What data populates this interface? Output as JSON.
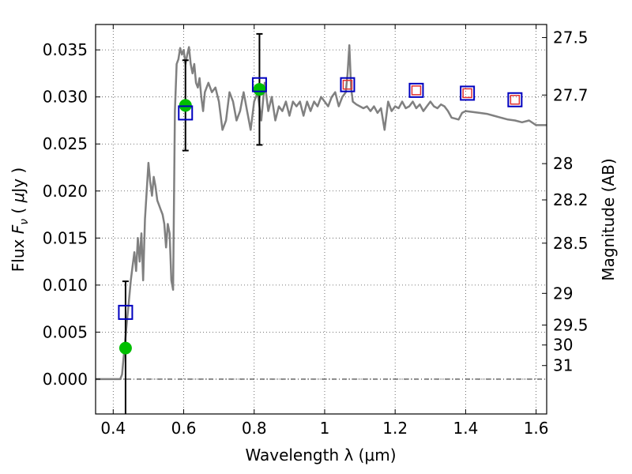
{
  "chart_data": {
    "type": "scatter",
    "xlabel": "Wavelength  λ (μm)",
    "ylabel": {
      "prefix": "Flux  ",
      "var": "F",
      "sub": "ν",
      "unit_open": "  ( ",
      "mu": "μ",
      "unit": "Jy )"
    },
    "y2label": "Magnitude (AB)",
    "xlim": [
      0.35,
      1.63
    ],
    "ylim": [
      -0.0037,
      0.0377
    ],
    "grid": true,
    "xticks": [
      0.4,
      0.6,
      0.8,
      1.0,
      1.2,
      1.4,
      1.6
    ],
    "xtick_labels": [
      "0.4",
      "0.6",
      "0.8",
      "1",
      "1.2",
      "1.4",
      "1.6"
    ],
    "yticks": [
      0.0,
      0.005,
      0.01,
      0.015,
      0.02,
      0.025,
      0.03,
      0.035
    ],
    "ytick_labels": [
      "0.000",
      "0.005",
      "0.010",
      "0.015",
      "0.020",
      "0.025",
      "0.030",
      "0.035"
    ],
    "y2ticks": [
      27.5,
      27.7,
      28,
      28.2,
      28.5,
      29,
      29.5,
      30,
      31
    ],
    "y2tick_labels": [
      "27.5",
      "27.7",
      "28",
      "28.2",
      "28.5",
      "29",
      "29.5",
      "30",
      "31"
    ],
    "zero_line": true,
    "series": [
      {
        "kind": "line",
        "color": "#808080",
        "x": [
          0.35,
          0.4,
          0.42,
          0.425,
          0.43,
          0.435,
          0.44,
          0.445,
          0.45,
          0.455,
          0.46,
          0.465,
          0.47,
          0.475,
          0.48,
          0.485,
          0.49,
          0.5,
          0.505,
          0.51,
          0.515,
          0.52,
          0.525,
          0.53,
          0.535,
          0.54,
          0.545,
          0.55,
          0.555,
          0.56,
          0.565,
          0.57,
          0.575,
          0.58,
          0.585,
          0.59,
          0.595,
          0.6,
          0.605,
          0.61,
          0.615,
          0.62,
          0.625,
          0.63,
          0.635,
          0.64,
          0.645,
          0.65,
          0.655,
          0.66,
          0.67,
          0.68,
          0.69,
          0.7,
          0.71,
          0.72,
          0.73,
          0.74,
          0.75,
          0.76,
          0.77,
          0.78,
          0.79,
          0.8,
          0.81,
          0.82,
          0.83,
          0.84,
          0.85,
          0.86,
          0.87,
          0.88,
          0.89,
          0.9,
          0.91,
          0.92,
          0.93,
          0.94,
          0.95,
          0.96,
          0.97,
          0.98,
          0.99,
          1.0,
          1.01,
          1.02,
          1.03,
          1.04,
          1.05,
          1.06,
          1.065,
          1.07,
          1.075,
          1.08,
          1.09,
          1.1,
          1.11,
          1.12,
          1.13,
          1.14,
          1.15,
          1.16,
          1.17,
          1.18,
          1.19,
          1.2,
          1.21,
          1.22,
          1.23,
          1.24,
          1.25,
          1.26,
          1.27,
          1.28,
          1.29,
          1.3,
          1.31,
          1.32,
          1.33,
          1.34,
          1.35,
          1.36,
          1.37,
          1.38,
          1.39,
          1.4,
          1.42,
          1.44,
          1.46,
          1.48,
          1.5,
          1.52,
          1.54,
          1.56,
          1.58,
          1.6,
          1.63
        ],
        "y": [
          0.0,
          0.0,
          0.0,
          0.0005,
          0.0025,
          0.0045,
          0.0065,
          0.0085,
          0.0105,
          0.012,
          0.0135,
          0.0115,
          0.015,
          0.0125,
          0.0155,
          0.0105,
          0.017,
          0.023,
          0.021,
          0.0195,
          0.0215,
          0.0205,
          0.019,
          0.0185,
          0.018,
          0.0175,
          0.0165,
          0.014,
          0.0165,
          0.0155,
          0.0105,
          0.0095,
          0.0285,
          0.0335,
          0.034,
          0.0352,
          0.0345,
          0.035,
          0.0335,
          0.0345,
          0.0353,
          0.0335,
          0.0325,
          0.0335,
          0.0315,
          0.031,
          0.032,
          0.03,
          0.0285,
          0.0305,
          0.0315,
          0.0305,
          0.031,
          0.0295,
          0.0265,
          0.0275,
          0.0305,
          0.0295,
          0.0275,
          0.0285,
          0.0305,
          0.0285,
          0.0265,
          0.0295,
          0.0305,
          0.0275,
          0.0315,
          0.0285,
          0.03,
          0.0275,
          0.029,
          0.0285,
          0.0295,
          0.028,
          0.0295,
          0.029,
          0.0295,
          0.028,
          0.0295,
          0.0285,
          0.0295,
          0.029,
          0.03,
          0.0295,
          0.029,
          0.03,
          0.0305,
          0.029,
          0.03,
          0.0305,
          0.0325,
          0.0355,
          0.031,
          0.0295,
          0.0292,
          0.029,
          0.0288,
          0.029,
          0.0285,
          0.029,
          0.0283,
          0.0288,
          0.0265,
          0.0295,
          0.0285,
          0.029,
          0.0288,
          0.0295,
          0.0288,
          0.029,
          0.0295,
          0.0288,
          0.0292,
          0.0285,
          0.029,
          0.0295,
          0.029,
          0.0288,
          0.0292,
          0.029,
          0.0285,
          0.0278,
          0.0277,
          0.0276,
          0.0283,
          0.0285,
          0.0284,
          0.0283,
          0.0282,
          0.028,
          0.0278,
          0.0276,
          0.0275,
          0.0273,
          0.0275,
          0.027,
          0.027
        ]
      },
      {
        "kind": "points",
        "marker": "circle",
        "color": "#00bf00",
        "x": [
          0.435,
          0.605,
          0.815
        ],
        "y": [
          0.0033,
          0.0291,
          0.0308
        ],
        "err": [
          0.0071,
          0.0048,
          0.0059
        ]
      },
      {
        "kind": "points",
        "marker": "square",
        "color": "#0000bf",
        "x": [
          0.435,
          0.605,
          0.815,
          1.065,
          1.26,
          1.405,
          1.54
        ],
        "y": [
          0.0071,
          0.0283,
          0.0313,
          0.0313,
          0.0307,
          0.0304,
          0.0297
        ]
      },
      {
        "kind": "points",
        "marker": "square-small",
        "color": "#e03030",
        "x": [
          1.065,
          1.26,
          1.405,
          1.54
        ],
        "y": [
          0.0313,
          0.0307,
          0.0304,
          0.0297
        ]
      }
    ]
  }
}
